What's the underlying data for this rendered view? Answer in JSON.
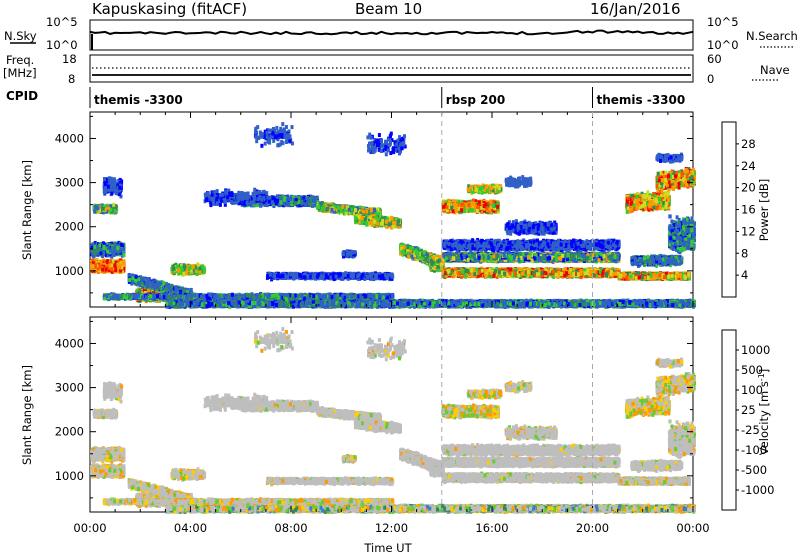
{
  "header": {
    "title": "Kapuskasing (fitACF)",
    "beam": "Beam 10",
    "date": "16/Jan/2016"
  },
  "top_panels": {
    "nsky_label": "N.Sky",
    "nsky_ticks": [
      "10^5",
      "10^0"
    ],
    "nsearch_ticks": [
      "10^5",
      "10^0"
    ],
    "nsearch_label": "N.Search",
    "freq_label_1": "Freq.",
    "freq_label_2": "[MHz]",
    "freq_ticks": [
      "18",
      "8"
    ],
    "nave_ticks": [
      "60",
      "0"
    ],
    "nave_label": "Nave",
    "cpid_label": "CPID",
    "cpid_segments": [
      {
        "label": "themis -3300",
        "start_h": 0.0
      },
      {
        "label": "rbsp 200",
        "start_h": 14.0
      },
      {
        "label": "themis -3300",
        "start_h": 20.0
      }
    ]
  },
  "chart_data": [
    {
      "type": "heatmap",
      "name": "power",
      "ylabel": "Slant Range [km]",
      "xlim": [
        0,
        24
      ],
      "ylim": [
        180,
        4600
      ],
      "yticks": [
        1000,
        2000,
        3000,
        4000
      ],
      "colorbar_label": "Power [dB]",
      "colorbar_ticks": [
        "4",
        "8",
        "12",
        "16",
        "20",
        "24",
        "28"
      ],
      "colors": [
        "#0000ff",
        "#3060c8",
        "#2e8b57",
        "#33cc33",
        "#ccdd22",
        "#ff9900",
        "#ff5500",
        "#ee0000"
      ]
    },
    {
      "type": "heatmap",
      "name": "velocity",
      "ylabel": "Slant Range [km]",
      "xlabel": "Time UT",
      "xlim": [
        0,
        24
      ],
      "ylim": [
        180,
        4600
      ],
      "yticks": [
        1000,
        2000,
        3000,
        4000
      ],
      "xticks": [
        "00:00",
        "04:00",
        "08:00",
        "12:00",
        "16:00",
        "20:00",
        "00:00"
      ],
      "colorbar_label": "Velocity [m s^-1]",
      "colorbar_ticks": [
        "1000",
        "500",
        "100",
        "25",
        "-25",
        "-100",
        "-500",
        "-1000"
      ],
      "colors": [
        "#1e3c9e",
        "#3a7fc8",
        "#2e8b57",
        "#66cc33",
        "#bebebe",
        "#ffcc00",
        "#ff9900",
        "#ff5500",
        "#ee0000"
      ]
    }
  ],
  "mode_changes_h": [
    14.0,
    20.0
  ]
}
